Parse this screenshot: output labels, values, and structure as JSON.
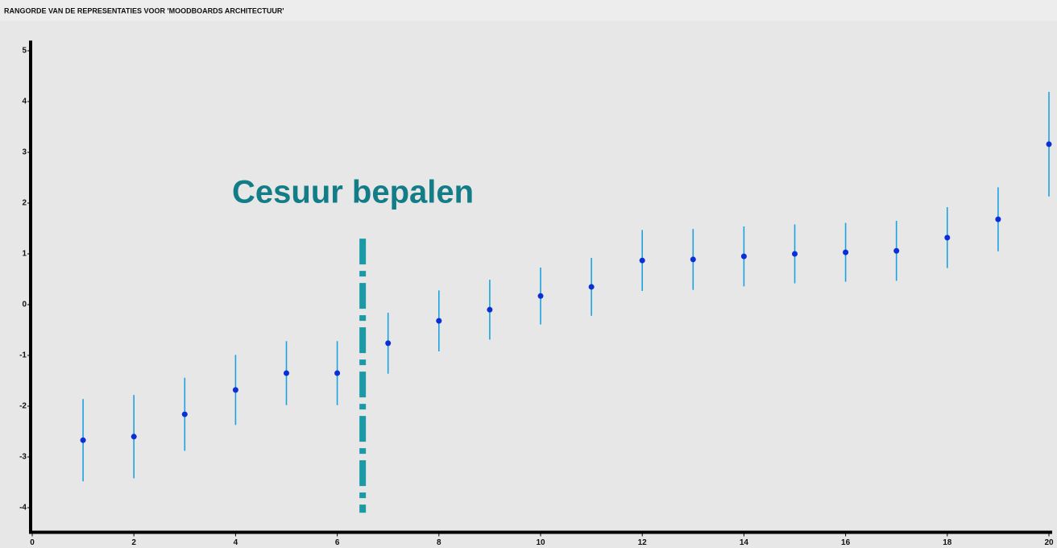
{
  "chart_data": {
    "type": "scatter",
    "title": "RANGORDE VAN DE REPRESENTATIES VOOR 'MOODBOARDS ARCHITECTUUR'",
    "annotation": "Cesuur bepalen",
    "x": [
      1,
      2,
      3,
      4,
      5,
      6,
      7,
      8,
      9,
      10,
      11,
      12,
      13,
      14,
      15,
      16,
      17,
      18,
      19,
      20
    ],
    "values": [
      -2.67,
      -2.6,
      -2.16,
      -1.68,
      -1.35,
      -1.35,
      -0.76,
      -0.32,
      -0.1,
      0.17,
      0.35,
      0.87,
      0.89,
      0.95,
      1.0,
      1.03,
      1.06,
      1.32,
      1.68,
      3.16
    ],
    "errors": [
      0.81,
      0.82,
      0.72,
      0.69,
      0.63,
      0.63,
      0.6,
      0.6,
      0.59,
      0.56,
      0.57,
      0.6,
      0.6,
      0.59,
      0.58,
      0.58,
      0.59,
      0.6,
      0.63,
      1.03
    ],
    "color": "#0a2fd6",
    "error_color": "#1aa3e0",
    "cutoff": {
      "x": 6.5,
      "y": [
        1.3,
        -4.1
      ],
      "color": "#1b9aa6"
    },
    "xlim": [
      0,
      20
    ],
    "xticks": [
      0,
      2,
      4,
      6,
      8,
      10,
      12,
      14,
      16,
      18,
      20
    ],
    "ylim": [
      -4.5,
      5.2
    ],
    "yticks": [
      -4,
      -3,
      -2,
      -1,
      0,
      1,
      2,
      3,
      4,
      5
    ]
  }
}
